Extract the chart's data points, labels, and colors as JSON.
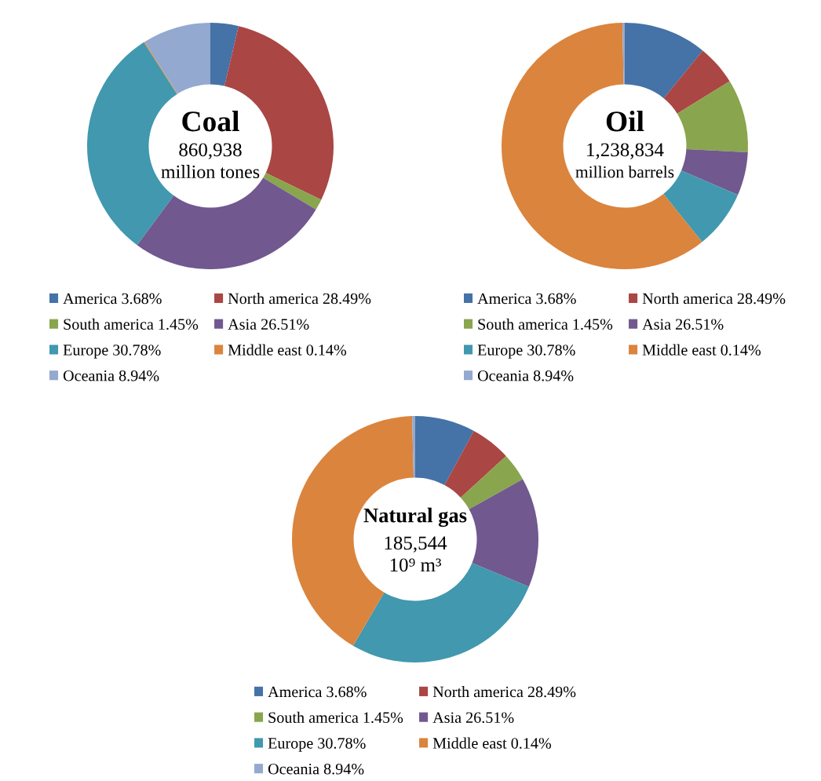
{
  "chart_data": [
    {
      "type": "donut",
      "title": "Coal",
      "annotations": [
        "860,938",
        "million tones"
      ],
      "categories": [
        "America 3.68%",
        "North america 28.49%",
        "South america 1.45%",
        "Asia 26.51%",
        "Europe 30.78%",
        "Middle east 0.14%",
        "Oceania 8.94%"
      ],
      "values": [
        3.68,
        28.49,
        1.45,
        26.51,
        30.78,
        0.14,
        8.94
      ],
      "colors": [
        "#4572a7",
        "#aa4643",
        "#89a54e",
        "#71588f",
        "#4198af",
        "#db843d",
        "#93a9cf"
      ],
      "legend": "bottom"
    },
    {
      "type": "donut",
      "title": "Oil",
      "annotations": [
        "1,238,834",
        "million barrels"
      ],
      "categories": [
        "America 3.68%",
        "North america 28.49%",
        "South america 1.45%",
        "Asia 26.51%",
        "Europe 30.78%",
        "Middle east 0.14%",
        "Oceania 8.94%"
      ],
      "values": [
        10.9,
        5.3,
        9.6,
        5.7,
        7.7,
        60.5,
        0.3
      ],
      "colors": [
        "#4572a7",
        "#aa4643",
        "#89a54e",
        "#71588f",
        "#4198af",
        "#db843d",
        "#93a9cf"
      ],
      "legend": "bottom"
    },
    {
      "type": "donut",
      "title": "Natural gas",
      "annotations": [
        "185,544",
        "10⁹ m³"
      ],
      "categories": [
        "America 3.68%",
        "North america 28.49%",
        "South america 1.45%",
        "Asia 26.51%",
        "Europe 30.78%",
        "Middle east 0.14%",
        "Oceania 8.94%"
      ],
      "values": [
        7.9,
        5.3,
        3.7,
        14.4,
        27.1,
        41.2,
        0.4
      ],
      "colors": [
        "#4572a7",
        "#aa4643",
        "#89a54e",
        "#71588f",
        "#4198af",
        "#db843d",
        "#93a9cf"
      ],
      "legend": "bottom"
    }
  ]
}
